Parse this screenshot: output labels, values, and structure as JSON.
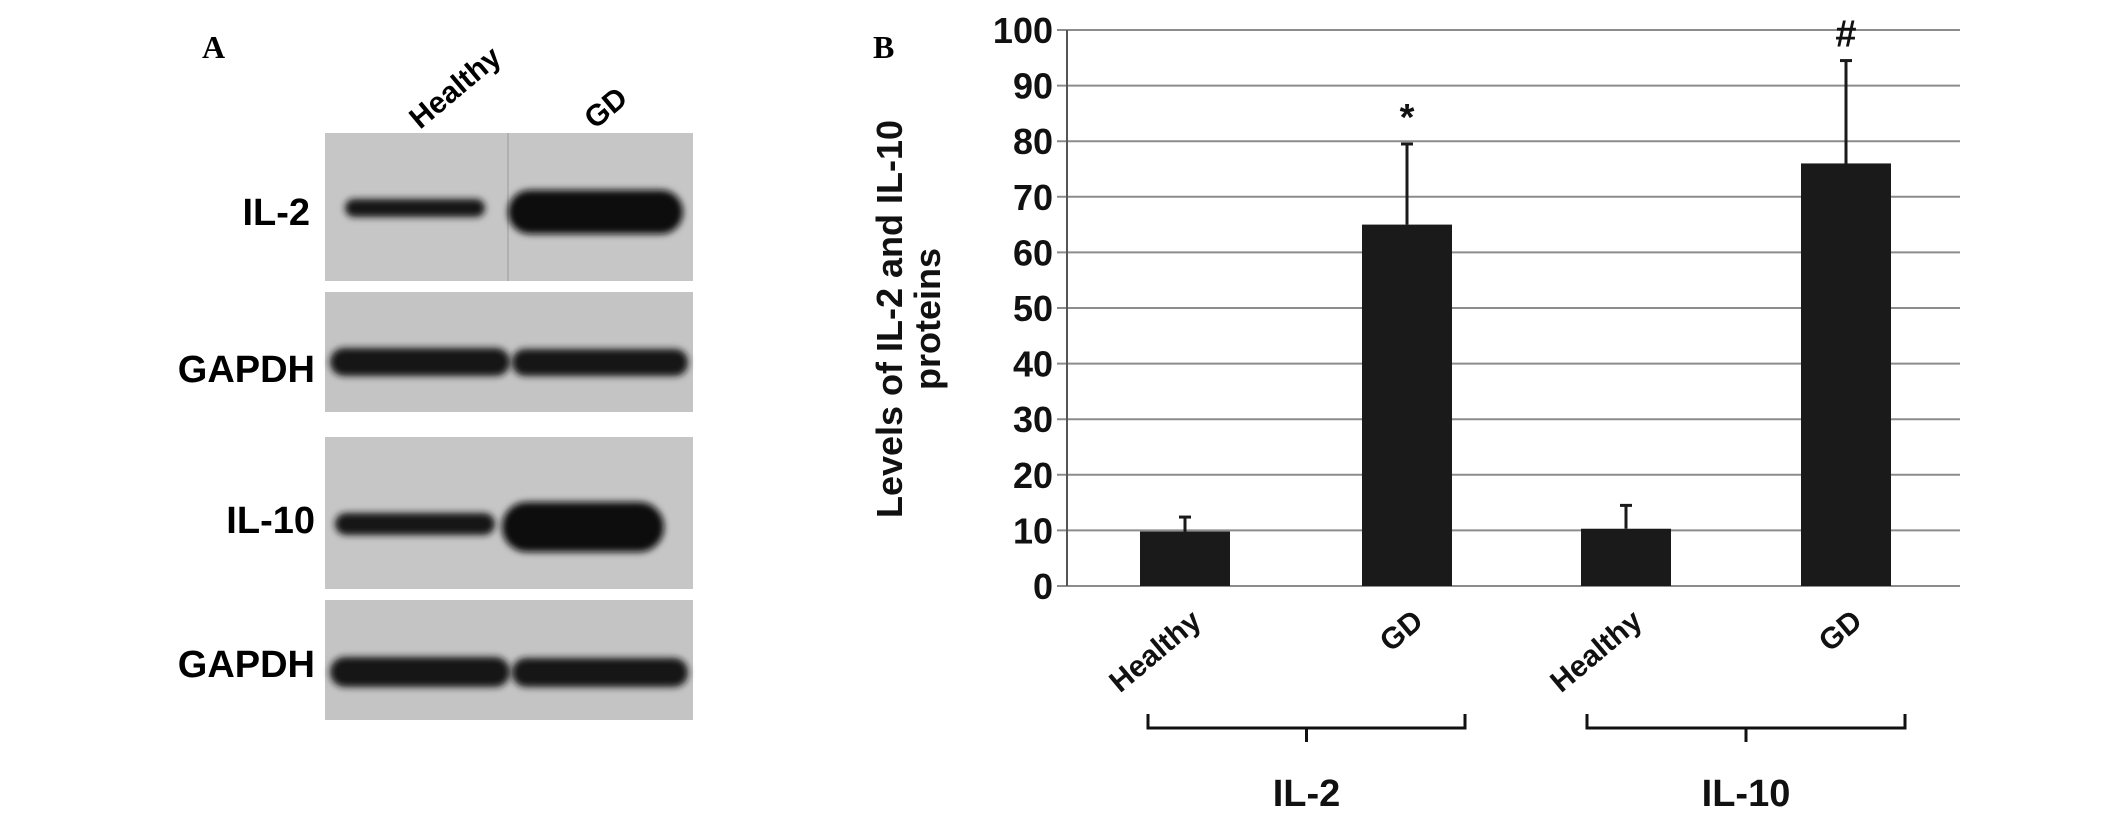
{
  "panel_a": {
    "letter": "A",
    "lanes": [
      "Healthy",
      "GD"
    ],
    "blots": [
      {
        "label": "IL-2",
        "intensity": [
          0.45,
          1.0
        ]
      },
      {
        "label": "GAPDH",
        "intensity": [
          0.95,
          0.95
        ]
      },
      {
        "label": "IL-10",
        "intensity": [
          0.55,
          1.0
        ]
      },
      {
        "label": "GAPDH",
        "intensity": [
          0.95,
          0.95
        ]
      }
    ]
  },
  "chart_data": {
    "type": "bar",
    "panel_letter": "B",
    "ylabel_line1": "Levels of IL-2 and IL-10",
    "ylabel_line2": "proteins",
    "xlabel": "",
    "ylim": [
      0,
      100
    ],
    "yticks": [
      0,
      10,
      20,
      30,
      40,
      50,
      60,
      70,
      80,
      90,
      100
    ],
    "grid": true,
    "categories": [
      "Healthy",
      "GD",
      "Healthy",
      "GD"
    ],
    "groups": [
      {
        "label": "IL-2",
        "categories": [
          0,
          1
        ]
      },
      {
        "label": "IL-10",
        "categories": [
          2,
          3
        ]
      }
    ],
    "series": [
      {
        "values": [
          9.8,
          65,
          10.3,
          76
        ],
        "errors": [
          2.6,
          14.5,
          4.2,
          18.5
        ],
        "annotations": [
          "",
          "*",
          "",
          "#"
        ],
        "color": "#1a1a1a"
      }
    ]
  }
}
